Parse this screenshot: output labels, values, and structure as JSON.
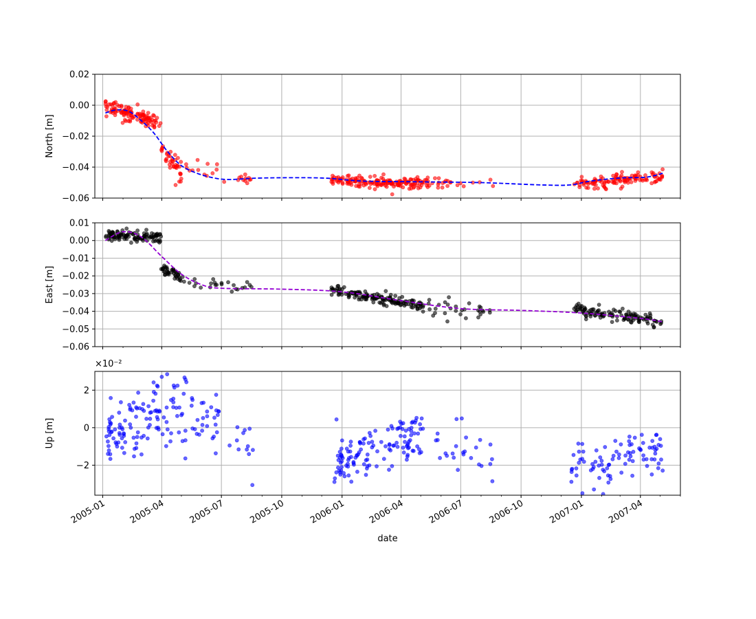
{
  "chart_data": [
    {
      "type": "scatter",
      "ylabel": "North [m]",
      "xlabel": "",
      "ylim": [
        -0.06,
        0.02
      ],
      "yticks": [
        -0.06,
        -0.04,
        -0.02,
        0.0,
        0.02
      ],
      "ytick_labels": [
        "−0.06",
        "−0.04",
        "−0.02",
        "0.00",
        "0.02"
      ],
      "grid": true,
      "point_color": "#ff0000",
      "line_color": "#0000ff",
      "series": [
        {
          "kind": "points",
          "segments": [
            {
              "x": [
                "2005-01-05",
                "2005-03-31"
              ],
              "y": [
                0.0,
                -0.012
              ],
              "n": 120,
              "noise": 0.0025
            },
            {
              "x": [
                "2005-03-31",
                "2005-05-01"
              ],
              "y": [
                -0.028,
                -0.044
              ],
              "n": 40,
              "noise": 0.003
            },
            {
              "x": [
                "2005-05-01",
                "2005-06-25"
              ],
              "y": [
                -0.04,
                -0.043
              ],
              "n": 12,
              "noise": 0.003
            },
            {
              "x": [
                "2005-06-25",
                "2005-08-20"
              ],
              "y": [
                -0.046,
                -0.048
              ],
              "n": 12,
              "noise": 0.002
            },
            {
              "x": [
                "2005-12-15",
                "2006-05-05"
              ],
              "y": [
                -0.048,
                -0.051
              ],
              "n": 160,
              "noise": 0.0018
            },
            {
              "x": [
                "2006-05-05",
                "2006-08-20"
              ],
              "y": [
                -0.05,
                -0.05
              ],
              "n": 30,
              "noise": 0.0018
            },
            {
              "x": [
                "2006-12-20",
                "2007-05-05"
              ],
              "y": [
                -0.051,
                -0.046
              ],
              "n": 120,
              "noise": 0.0022
            }
          ]
        },
        {
          "kind": "line",
          "dashed": true,
          "points": [
            [
              "2005-01-05",
              -0.005
            ],
            [
              "2005-01-22",
              -0.003
            ],
            [
              "2005-02-10",
              -0.004
            ],
            [
              "2005-03-01",
              -0.01
            ],
            [
              "2005-03-20",
              -0.018
            ],
            [
              "2005-04-10",
              -0.03
            ],
            [
              "2005-05-01",
              -0.039
            ],
            [
              "2005-05-25",
              -0.044
            ],
            [
              "2005-06-20",
              -0.047
            ],
            [
              "2005-07-15",
              -0.048
            ],
            [
              "2005-09-01",
              -0.047
            ],
            [
              "2005-12-01",
              -0.047
            ],
            [
              "2006-02-01",
              -0.049
            ],
            [
              "2006-05-01",
              -0.0495
            ],
            [
              "2006-08-01",
              -0.05
            ],
            [
              "2006-11-01",
              -0.0515
            ],
            [
              "2006-12-15",
              -0.0515
            ],
            [
              "2007-01-15",
              -0.049
            ],
            [
              "2007-03-01",
              -0.047
            ],
            [
              "2007-04-10",
              -0.0465
            ],
            [
              "2007-05-05",
              -0.044
            ]
          ]
        }
      ]
    },
    {
      "type": "scatter",
      "ylabel": "East [m]",
      "xlabel": "",
      "ylim": [
        -0.06,
        0.01
      ],
      "yticks": [
        -0.06,
        -0.05,
        -0.04,
        -0.03,
        -0.02,
        -0.01,
        0.0,
        0.01
      ],
      "ytick_labels": [
        "−0.06",
        "−0.05",
        "−0.04",
        "−0.03",
        "−0.02",
        "−0.01",
        "0.00",
        "0.01"
      ],
      "grid": true,
      "point_color": "#000000",
      "line_color": "#9400d3",
      "series": [
        {
          "kind": "points",
          "segments": [
            {
              "x": [
                "2005-01-05",
                "2005-03-31"
              ],
              "y": [
                0.003,
                0.002
              ],
              "n": 110,
              "noise": 0.0015
            },
            {
              "x": [
                "2005-03-31",
                "2005-05-01"
              ],
              "y": [
                -0.015,
                -0.021
              ],
              "n": 40,
              "noise": 0.002
            },
            {
              "x": [
                "2005-05-01",
                "2005-08-20"
              ],
              "y": [
                -0.022,
                -0.027
              ],
              "n": 25,
              "noise": 0.002
            },
            {
              "x": [
                "2005-12-15",
                "2006-05-05"
              ],
              "y": [
                -0.028,
                -0.037
              ],
              "n": 150,
              "noise": 0.0015
            },
            {
              "x": [
                "2006-05-05",
                "2006-08-20"
              ],
              "y": [
                -0.037,
                -0.04
              ],
              "n": 30,
              "noise": 0.002
            },
            {
              "x": [
                "2006-12-20",
                "2007-05-05"
              ],
              "y": [
                -0.039,
                -0.046
              ],
              "n": 120,
              "noise": 0.0015
            }
          ]
        },
        {
          "kind": "line",
          "dashed": true,
          "points": [
            [
              "2005-01-05",
              0.0
            ],
            [
              "2005-02-01",
              0.005
            ],
            [
              "2005-03-01",
              0.002
            ],
            [
              "2005-04-01",
              -0.009
            ],
            [
              "2005-05-01",
              -0.019
            ],
            [
              "2005-06-01",
              -0.025
            ],
            [
              "2005-07-01",
              -0.027
            ],
            [
              "2005-10-01",
              -0.0275
            ],
            [
              "2006-01-01",
              -0.029
            ],
            [
              "2006-04-01",
              -0.034
            ],
            [
              "2006-07-01",
              -0.0385
            ],
            [
              "2006-10-01",
              -0.0395
            ],
            [
              "2007-01-01",
              -0.041
            ],
            [
              "2007-04-01",
              -0.044
            ],
            [
              "2007-05-05",
              -0.046
            ]
          ]
        }
      ]
    },
    {
      "type": "scatter",
      "ylabel": "Up [m]",
      "xlabel": "date",
      "ylim": [
        -3.6,
        3.0
      ],
      "y_scale_label": "×10⁻²",
      "yticks": [
        -2,
        0,
        2
      ],
      "ytick_labels": [
        "−2",
        "0",
        "2"
      ],
      "grid": true,
      "point_color": "#0000ff",
      "series": [
        {
          "kind": "points",
          "segments": [
            {
              "x": [
                "2005-01-05",
                "2005-04-01"
              ],
              "y": [
                -0.5,
                0.8
              ],
              "n": 90,
              "noise": 0.8
            },
            {
              "x": [
                "2005-04-01",
                "2005-07-01"
              ],
              "y": [
                0.8,
                0.6
              ],
              "n": 60,
              "noise": 1.1
            },
            {
              "x": [
                "2005-07-01",
                "2005-08-20"
              ],
              "y": [
                -0.2,
                -1.0
              ],
              "n": 12,
              "noise": 0.8
            },
            {
              "x": [
                "2005-12-20",
                "2006-03-01"
              ],
              "y": [
                -2.0,
                -1.2
              ],
              "n": 70,
              "noise": 0.7
            },
            {
              "x": [
                "2006-03-01",
                "2006-05-05"
              ],
              "y": [
                -1.2,
                -0.2
              ],
              "n": 60,
              "noise": 0.7
            },
            {
              "x": [
                "2006-05-05",
                "2006-08-20"
              ],
              "y": [
                -0.8,
                -1.8
              ],
              "n": 25,
              "noise": 0.8
            },
            {
              "x": [
                "2006-12-15",
                "2007-02-15"
              ],
              "y": [
                -1.8,
                -2.2
              ],
              "n": 40,
              "noise": 0.6
            },
            {
              "x": [
                "2007-02-15",
                "2007-05-05"
              ],
              "y": [
                -1.2,
                -1.2
              ],
              "n": 50,
              "noise": 0.6
            }
          ]
        }
      ]
    }
  ],
  "x_axis": {
    "range": [
      "2004-12-20",
      "2007-06-01"
    ],
    "major_ticks": [
      "2005-01-01",
      "2005-04-01",
      "2005-07-01",
      "2005-10-01",
      "2006-01-01",
      "2006-04-01",
      "2006-07-01",
      "2006-10-01",
      "2007-01-01",
      "2007-04-01"
    ],
    "tick_labels": [
      "2005-01",
      "2005-04",
      "2005-07",
      "2005-10",
      "2006-01",
      "2006-04",
      "2006-07",
      "2006-10",
      "2007-01",
      "2007-04"
    ],
    "minor_ticks_monthly": true,
    "label": "date"
  }
}
